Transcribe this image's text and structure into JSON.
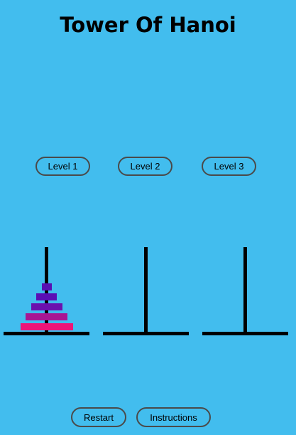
{
  "header": {
    "title": "Tower Of Hanoi"
  },
  "levels": [
    {
      "label": "Level 1"
    },
    {
      "label": "Level 2"
    },
    {
      "label": "Level 3"
    }
  ],
  "controls": {
    "restart_label": "Restart",
    "instructions_label": "Instructions"
  },
  "game": {
    "towers": [
      {
        "disks": [
          {
            "size": 5,
            "color": "#ee1478"
          },
          {
            "size": 4,
            "color": "#a81693"
          },
          {
            "size": 3,
            "color": "#6b11ad"
          },
          {
            "size": 2,
            "color": "#5a0fb4"
          },
          {
            "size": 1,
            "color": "#5810b2"
          }
        ]
      },
      {
        "disks": []
      },
      {
        "disks": []
      }
    ]
  },
  "colors": {
    "background": "#42bdee",
    "rod": "#000000"
  }
}
